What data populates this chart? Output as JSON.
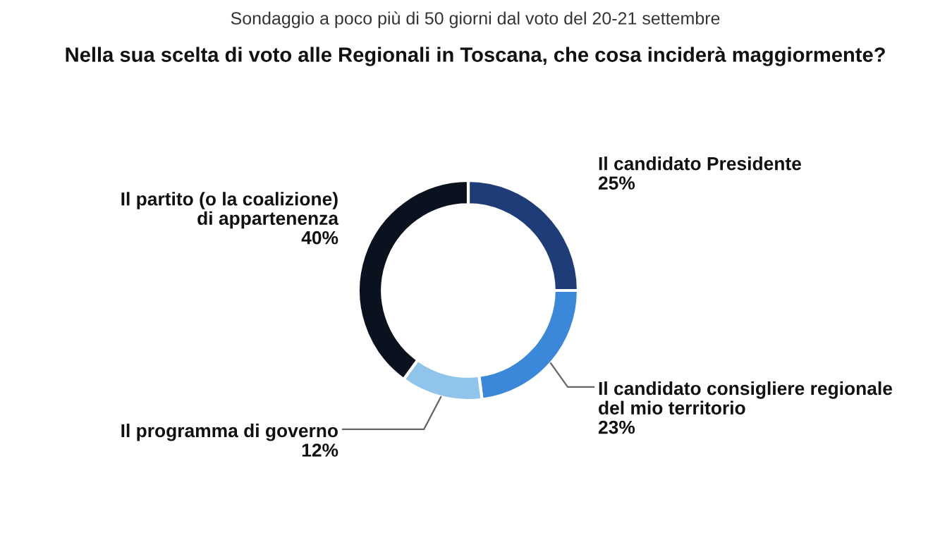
{
  "chart_data": {
    "type": "donut",
    "subtitle": "Sondaggio a poco più di 50 giorni dal voto del 20-21 settembre",
    "title": "Nella sua scelta di voto alle Regionali in Toscana, che cosa inciderà maggiormente?",
    "categories": [
      "Il candidato Presidente",
      "Il candidato consigliere regionale\ndel mio territorio",
      "Il programma di governo",
      "Il partito (o la coalizione)\ndi appartenenza"
    ],
    "values": [
      25,
      23,
      12,
      40
    ],
    "value_labels": [
      "25%",
      "23%",
      "12%",
      "40%"
    ],
    "colors": [
      "#1e3d78",
      "#3b87d9",
      "#90c4eb",
      "#0a111f"
    ]
  }
}
